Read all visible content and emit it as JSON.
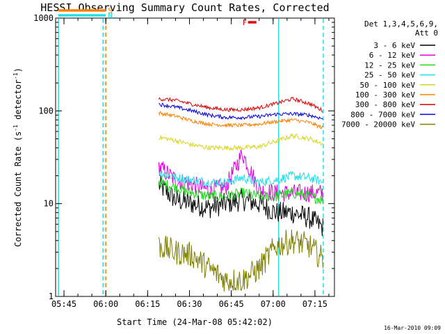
{
  "title": "HESSI Observing Summary Count Rates, Corrected",
  "ylabel_parts": [
    "Corrected Count Rate (s",
    "-1",
    " detector",
    "-1",
    ")"
  ],
  "xlabel": "Start Time (24-Mar-08 05:42:02)",
  "footer": "16-Mar-2010 09:09",
  "legend": {
    "header_line1": "Det 1,3,4,5,6,9,",
    "header_line2": "Att 0",
    "entries": [
      {
        "label": "3 - 6 keV",
        "color": "#000000"
      },
      {
        "label": "6 - 12 keV",
        "color": "#e000e0"
      },
      {
        "label": "12 - 25 keV",
        "color": "#22d622"
      },
      {
        "label": "25 - 50 keV",
        "color": "#22e0e6"
      },
      {
        "label": "50 - 100 keV",
        "color": "#d6d61e"
      },
      {
        "label": "100 - 300 keV",
        "color": "#ff8000"
      },
      {
        "label": "300 - 800 keV",
        "color": "#e00000"
      },
      {
        "label": "800 - 7000 keV",
        "color": "#0000e6"
      },
      {
        "label": "7000 - 20000 keV",
        "color": "#7f7f00"
      }
    ]
  },
  "flags": [
    {
      "letter": "S",
      "color": "#ff8000",
      "x_start": "05:43",
      "x_end": "06:00"
    },
    {
      "letter": "N",
      "color": "#22e0e6",
      "x_start": "05:43",
      "x_end": "06:00"
    },
    {
      "letter": "F",
      "color": "#e00000",
      "x_start": "06:51",
      "x_end": "06:54"
    }
  ],
  "chart_data": {
    "type": "line",
    "title": "HESSI Observing Summary Count Rates, Corrected",
    "xlabel": "Start Time (24-Mar-08 05:42:02)",
    "ylabel": "Corrected Count Rate (s-1 detector-1)",
    "y_scale": "log",
    "ylim": [
      1,
      1000
    ],
    "xlim": [
      "05:42",
      "07:22"
    ],
    "x_ticks": [
      "05:45",
      "06:00",
      "06:15",
      "06:30",
      "06:45",
      "07:00",
      "07:15"
    ],
    "y_ticks": [
      "1",
      "10",
      "100",
      "1000"
    ],
    "grid": false,
    "legend_position": "right",
    "vertical_lines": [
      {
        "x": "05:43",
        "color": "#22e0e6",
        "style": "solid"
      },
      {
        "x": "05:59",
        "color": "#22e0e6",
        "style": "dashed"
      },
      {
        "x": "06:00",
        "color": "#ff8000",
        "style": "dashed"
      },
      {
        "x": "07:02",
        "color": "#22e0e6",
        "style": "solid"
      },
      {
        "x": "07:18",
        "color": "#22e0e6",
        "style": "dashed"
      }
    ],
    "x": [
      "06:19",
      "06:25",
      "06:31",
      "06:37",
      "06:43",
      "06:49",
      "06:55",
      "07:01",
      "07:07",
      "07:13",
      "07:18"
    ],
    "series": [
      {
        "name": "3 - 6 keV",
        "color": "#000000",
        "values": [
          16,
          11,
          10,
          9,
          10,
          11,
          10,
          8,
          8,
          7,
          5.5
        ]
      },
      {
        "name": "6 - 12 keV",
        "color": "#e000e0",
        "values": [
          25,
          18,
          16,
          14,
          15,
          35,
          14,
          13,
          13,
          13,
          13
        ]
      },
      {
        "name": "12 - 25 keV",
        "color": "#22d622",
        "values": [
          17,
          15,
          13,
          12,
          12,
          13,
          12,
          12,
          13,
          12,
          11
        ]
      },
      {
        "name": "25 - 50 keV",
        "color": "#22e0e6",
        "values": [
          22,
          19,
          18,
          17,
          17,
          19,
          17,
          18,
          20,
          19,
          17
        ]
      },
      {
        "name": "50 - 100 keV",
        "color": "#d6d61e",
        "values": [
          52,
          48,
          43,
          40,
          40,
          40,
          41,
          47,
          54,
          50,
          44
        ]
      },
      {
        "name": "100 - 300 keV",
        "color": "#ff8000",
        "values": [
          95,
          88,
          78,
          72,
          70,
          70,
          72,
          77,
          80,
          75,
          65
        ]
      },
      {
        "name": "300 - 800 keV",
        "color": "#e00000",
        "values": [
          135,
          130,
          118,
          108,
          103,
          103,
          108,
          120,
          135,
          120,
          100
        ]
      },
      {
        "name": "800 - 7000 keV",
        "color": "#0000e6",
        "values": [
          118,
          110,
          100,
          90,
          85,
          85,
          87,
          92,
          93,
          90,
          82
        ]
      },
      {
        "name": "7000 - 20000 keV",
        "color": "#7f7f00",
        "values": [
          3.5,
          3,
          2.8,
          2,
          1.5,
          1.5,
          2,
          3.5,
          4,
          3.5,
          2.5
        ]
      }
    ]
  }
}
